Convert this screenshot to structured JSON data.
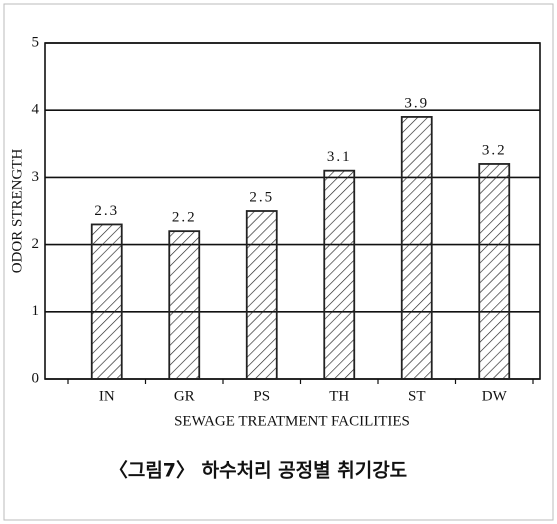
{
  "chart_data": {
    "type": "bar",
    "title": "〈그림7〉 하수처리 공정별 취기강도",
    "x_label": "SEWAGE TREATMENT FACILITIES",
    "y_label": "ODOR STRENGTH",
    "categories": [
      "IN",
      "GR",
      "PS",
      "TH",
      "ST",
      "DW"
    ],
    "values": [
      2.3,
      2.2,
      2.5,
      3.1,
      3.9,
      3.2
    ],
    "color": "#222222",
    "ylim": [
      0,
      5
    ],
    "yticks": [
      0,
      1,
      2,
      3,
      4,
      5
    ],
    "grid": true
  }
}
